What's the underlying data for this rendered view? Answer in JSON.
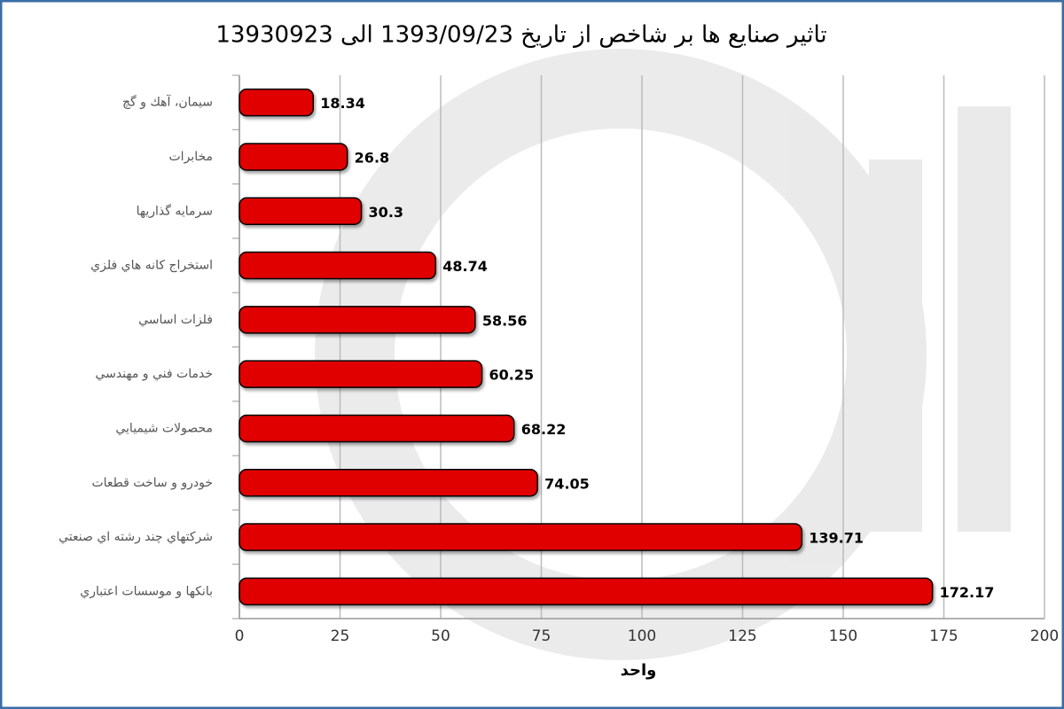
{
  "chart_data": {
    "type": "bar",
    "orientation": "horizontal",
    "title": "تاثير صنايع ها بر شاخص از تاريخ 1393/09/23 الى 13930923",
    "x_label": "واحد",
    "categories": [
      "سيمان، آهك و گچ",
      "مخابرات",
      "سرمايه گذاريها",
      "استخراج كانه هاي فلزي",
      "فلزات اساسي",
      "خدمات فني و مهندسي",
      "محصولات شيميايي",
      "خودرو و ساخت قطعات",
      "شركتهاي چند رشته اي صنعتي",
      "بانكها و موسسات اعتباري"
    ],
    "values": [
      18.34,
      26.8,
      30.3,
      48.74,
      58.56,
      60.25,
      68.22,
      74.05,
      139.71,
      172.17
    ],
    "color": "#e00000",
    "xlim": [
      0,
      200
    ],
    "xticks": [
      0,
      25,
      50,
      75,
      100,
      125,
      150,
      175,
      200
    ],
    "grid": true
  }
}
